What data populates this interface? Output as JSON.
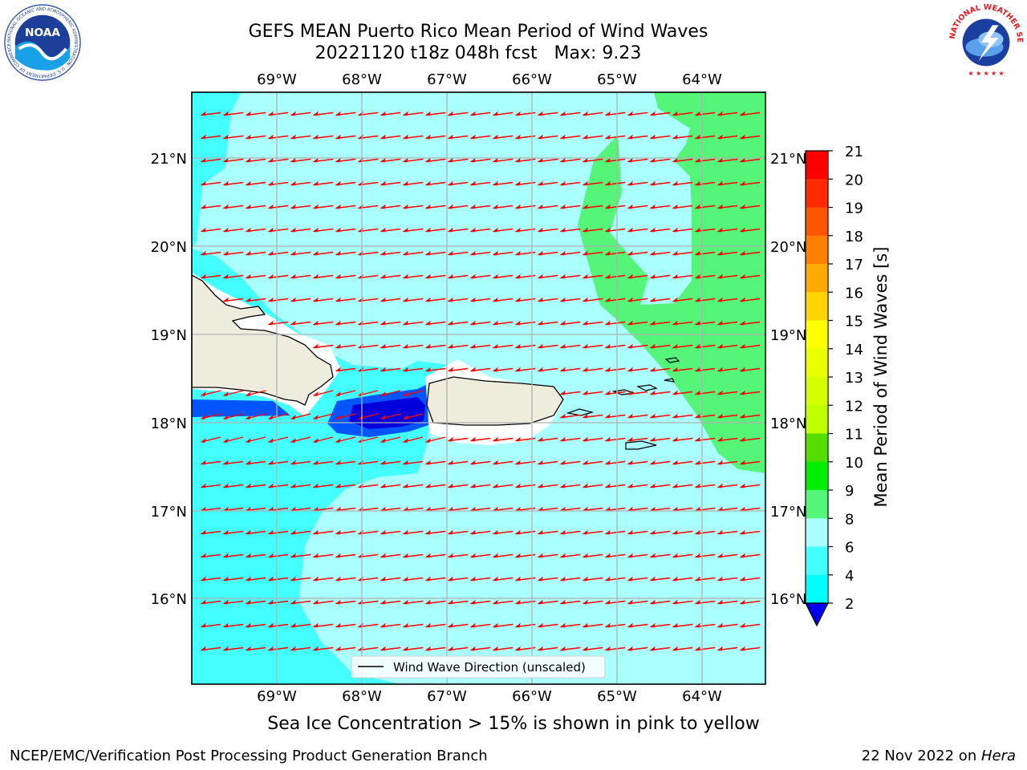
{
  "header": {
    "title_line1": "GEFS MEAN Puerto Rico Mean Period of Wind Waves",
    "title_line2": "20221120 t18z 048h fcst   Max: 9.23"
  },
  "logos": {
    "left": {
      "name": "NOAA",
      "ring_text": "NATIONAL OCEANIC AND ATMOSPHERIC ADMINISTRATION · U.S. DEPARTMENT OF COMMERCE"
    },
    "right": {
      "name": "NATIONAL WEATHER SERVICE"
    }
  },
  "map": {
    "lon_labels": [
      "69°W",
      "68°W",
      "67°W",
      "66°W",
      "65°W",
      "64°W"
    ],
    "lat_labels": [
      "21°N",
      "20°N",
      "19°N",
      "18°N",
      "17°N",
      "16°N"
    ],
    "legend_label": "Wind Wave Direction (unscaled)",
    "colors": {
      "land": "#eeecdc",
      "c_2_4": "#0055ff",
      "c_lt2": "#0000dd",
      "c_6_8": "#44ffff",
      "c_8_9": "#aaffff",
      "c_9_10": "#55f57a",
      "arrow": "#ff0000",
      "grid": "#b0b0b0"
    }
  },
  "colorbar": {
    "label": "Mean Period of Wind Waves [s]",
    "ticks": [
      "21",
      "20",
      "19",
      "18",
      "17",
      "16",
      "15",
      "14",
      "13",
      "12",
      "11",
      "10",
      "9",
      "8",
      "6",
      "4",
      "2"
    ],
    "colors": [
      "#ff0000",
      "#ff2a00",
      "#ff5500",
      "#ff8000",
      "#ffaa00",
      "#ffd400",
      "#ffff00",
      "#eaff00",
      "#d4ff00",
      "#bfff00",
      "#55dd00",
      "#00ee00",
      "#55f57a",
      "#aaffff",
      "#44ffff",
      "#00ffff",
      "#0077ff",
      "#0000ee"
    ]
  },
  "subtitle": "Sea Ice Concentration > 15% is shown in pink to yellow",
  "footer": {
    "left": "NCEP/EMC/Verification Post Processing Product Generation Branch",
    "right_prefix": "22 Nov 2022 on ",
    "right_host": "Hera"
  }
}
